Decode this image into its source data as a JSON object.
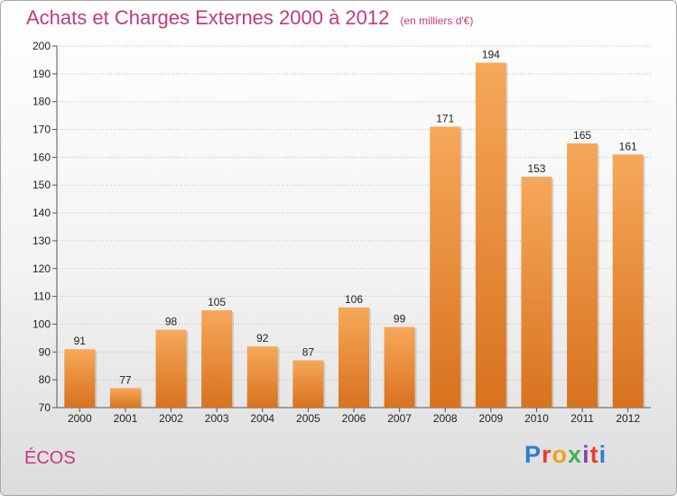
{
  "header": {
    "title": "Achats et Charges Externes 2000 à 2012",
    "subtitle": "(en milliers d'€)"
  },
  "footer": {
    "commune": "ÉCOS",
    "brand": "Proxiti"
  },
  "colors": {
    "title": "#c23a7c",
    "bar_top": "#f6a85a",
    "bar_bottom": "#d8721e",
    "grid": "#bbbbbb"
  },
  "chart_data": {
    "type": "bar",
    "title": "Achats et Charges Externes 2000 à 2012",
    "subtitle": "(en milliers d'€)",
    "categories": [
      "2000",
      "2001",
      "2002",
      "2003",
      "2004",
      "2005",
      "2006",
      "2007",
      "2008",
      "2009",
      "2010",
      "2011",
      "2012"
    ],
    "values": [
      91,
      77,
      98,
      105,
      92,
      87,
      106,
      99,
      171,
      194,
      153,
      165,
      161
    ],
    "ylim": [
      70,
      200
    ],
    "yticks": [
      70,
      80,
      90,
      100,
      110,
      120,
      130,
      140,
      150,
      160,
      170,
      180,
      190,
      200
    ],
    "grid": true,
    "legend": "none"
  }
}
